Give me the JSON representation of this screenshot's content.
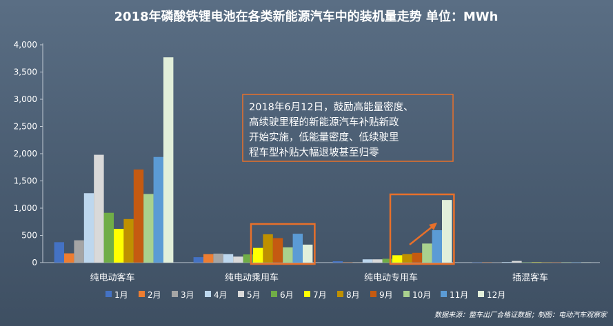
{
  "chart_data": {
    "type": "bar",
    "title": "2018年磷酸铁锂电池在各类新能源汽车中的装机量走势 单位：MWh",
    "categories": [
      "纯电动客车",
      "纯电动乘用车",
      "纯电动专用车",
      "插混客车"
    ],
    "series": [
      {
        "name": "1月",
        "color": "#4472c4",
        "values": [
          375,
          100,
          25,
          5
        ]
      },
      {
        "name": "2月",
        "color": "#ed7d31",
        "values": [
          170,
          155,
          5,
          5
        ]
      },
      {
        "name": "3月",
        "color": "#a5a5a5",
        "values": [
          410,
          165,
          10,
          5
        ]
      },
      {
        "name": "4月",
        "color": "#bdd7ee",
        "values": [
          1275,
          155,
          60,
          10
        ]
      },
      {
        "name": "5月",
        "color": "#d9d9d9",
        "values": [
          1980,
          110,
          60,
          30
        ]
      },
      {
        "name": "6月",
        "color": "#70ad47",
        "values": [
          915,
          150,
          70,
          5
        ]
      },
      {
        "name": "7月",
        "color": "#ffff00",
        "values": [
          620,
          270,
          135,
          5
        ]
      },
      {
        "name": "8月",
        "color": "#bf9000",
        "values": [
          800,
          520,
          155,
          5
        ]
      },
      {
        "name": "9月",
        "color": "#c55a11",
        "values": [
          1710,
          450,
          180,
          5
        ]
      },
      {
        "name": "10月",
        "color": "#a9d18e",
        "values": [
          1260,
          280,
          350,
          5
        ]
      },
      {
        "name": "11月",
        "color": "#5b9bd5",
        "values": [
          1940,
          530,
          595,
          5
        ]
      },
      {
        "name": "12月",
        "color": "#e2efda",
        "values": [
          3770,
          330,
          1150,
          5
        ]
      }
    ],
    "ylim": [
      0,
      4000
    ],
    "yticks": [
      0,
      500,
      1000,
      1500,
      2000,
      2500,
      3000,
      3500,
      4000
    ],
    "ytick_labels": [
      "0",
      "500",
      "1,000",
      "1,500",
      "2,000",
      "2,500",
      "3,000",
      "3,500",
      "4,000"
    ],
    "grid": false,
    "legend_position": "bottom",
    "annotation": {
      "lines": [
        "2018年6月12日，鼓励高能量密度、",
        "高续驶里程的新能源汽车补贴新政",
        "开始实施，低能量密度、低续驶里",
        "程车型补贴大幅退坡甚至归零"
      ]
    },
    "highlight_color": "#e8702a",
    "source": "数据来源：整车出厂合格证数据；制图：电动汽车观察家"
  }
}
